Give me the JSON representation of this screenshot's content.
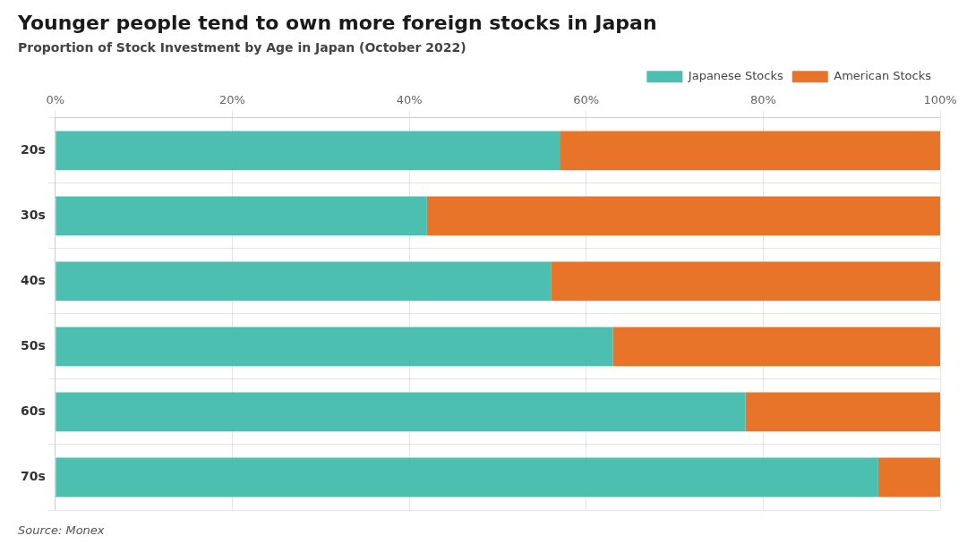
{
  "chart_data": {
    "type": "bar",
    "orientation": "horizontal",
    "stacked": true,
    "title": "Younger people tend to own more foreign stocks in Japan",
    "subtitle": "Proportion of Stock Investment by Age in Japan (October 2022)",
    "annotations": [
      "Source: Monex"
    ],
    "categories": [
      "20s",
      "30s",
      "40s",
      "50s",
      "60s",
      "70s"
    ],
    "series": [
      {
        "name": "Japanese Stocks",
        "color": "#4DBFB0",
        "values": [
          57,
          42,
          56,
          63,
          78,
          93
        ]
      },
      {
        "name": "American Stocks",
        "color": "#E8742A",
        "values": [
          43,
          58,
          44,
          37,
          22,
          7
        ]
      }
    ],
    "xlim": [
      0,
      100
    ],
    "xticks": [
      {
        "value": 0,
        "label": "0%"
      },
      {
        "value": 20,
        "label": "20%"
      },
      {
        "value": 40,
        "label": "40%"
      },
      {
        "value": 60,
        "label": "60%"
      },
      {
        "value": 80,
        "label": "80%"
      },
      {
        "value": 100,
        "label": "100%"
      }
    ],
    "grid": true,
    "legend": "upper right"
  }
}
